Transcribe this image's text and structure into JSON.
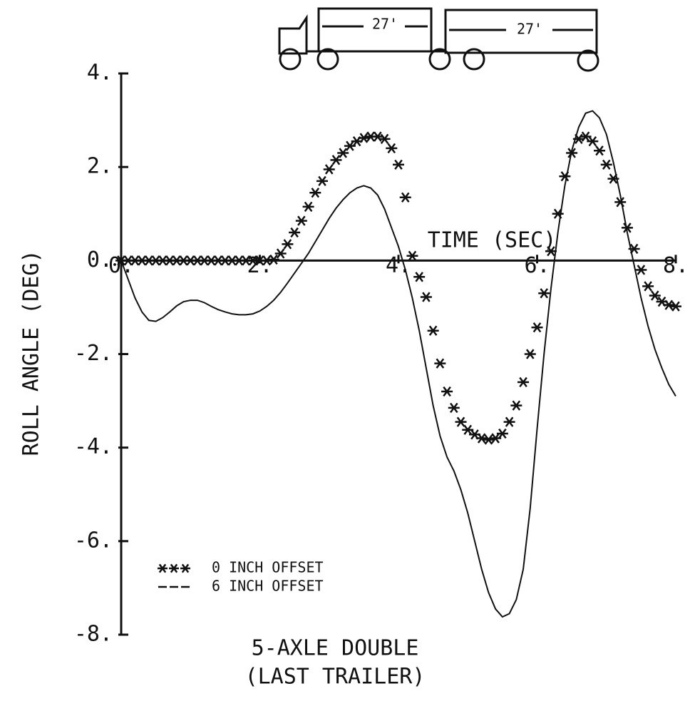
{
  "chart_data": {
    "type": "line",
    "ylabel": "ROLL ANGLE (DEG)",
    "xlabel": "TIME (SEC)",
    "caption": [
      "5-AXLE DOUBLE",
      "(LAST TRAILER)"
    ],
    "xlim": [
      0,
      8
    ],
    "ylim": [
      -8,
      4
    ],
    "xticks": [
      {
        "value": 0,
        "label": "0."
      },
      {
        "value": 2,
        "label": "2."
      },
      {
        "value": 4,
        "label": "4."
      },
      {
        "value": 6,
        "label": "6."
      },
      {
        "value": 8,
        "label": "8."
      }
    ],
    "yticks": [
      {
        "value": -8,
        "label": "-8."
      },
      {
        "value": -6,
        "label": "-6."
      },
      {
        "value": -4,
        "label": "-4."
      },
      {
        "value": -2,
        "label": "-2."
      },
      {
        "value": 0,
        "label": "0."
      },
      {
        "value": 2,
        "label": "2."
      },
      {
        "value": 4,
        "label": "4."
      }
    ],
    "grid": false,
    "legend": "lower left",
    "x": [
      0,
      0.1,
      0.2,
      0.3,
      0.4,
      0.5,
      0.6,
      0.7,
      0.8,
      0.9,
      1,
      1.1,
      1.2,
      1.3,
      1.4,
      1.5,
      1.6,
      1.7,
      1.8,
      1.9,
      2,
      2.1,
      2.2,
      2.3,
      2.4,
      2.5,
      2.6,
      2.7,
      2.8,
      2.9,
      3,
      3.1,
      3.2,
      3.3,
      3.4,
      3.5,
      3.6,
      3.7,
      3.8,
      3.9,
      4,
      4.1,
      4.2,
      4.3,
      4.4,
      4.5,
      4.6,
      4.7,
      4.8,
      4.9,
      5,
      5.1,
      5.2,
      5.3,
      5.4,
      5.5,
      5.6,
      5.7,
      5.8,
      5.9,
      6,
      6.1,
      6.2,
      6.3,
      6.4,
      6.5,
      6.6,
      6.7,
      6.8,
      6.9,
      7,
      7.1,
      7.2,
      7.3,
      7.4,
      7.5,
      7.6,
      7.7,
      7.8,
      7.9,
      8
    ],
    "series": [
      {
        "name": "0 INCH OFFSET",
        "color": "#111111",
        "marker": "asterisk",
        "values": [
          0,
          0,
          0,
          0,
          0,
          0,
          0,
          0,
          0,
          0,
          0,
          0,
          0,
          0,
          0,
          0,
          0,
          0,
          0,
          0,
          0,
          0,
          0.02,
          0.15,
          0.35,
          0.6,
          0.85,
          1.15,
          1.45,
          1.7,
          1.95,
          2.15,
          2.3,
          2.45,
          2.55,
          2.62,
          2.65,
          2.65,
          2.6,
          2.4,
          2.05,
          1.35,
          0.1,
          -0.35,
          -0.78,
          -1.5,
          -2.2,
          -2.8,
          -3.15,
          -3.45,
          -3.62,
          -3.72,
          -3.8,
          -3.83,
          -3.8,
          -3.7,
          -3.45,
          -3.1,
          -2.6,
          -2.0,
          -1.43,
          -0.7,
          0.2,
          1.0,
          1.8,
          2.3,
          2.6,
          2.65,
          2.55,
          2.35,
          2.05,
          1.75,
          1.25,
          0.7,
          0.25,
          -0.2,
          -0.55,
          -0.75,
          -0.88,
          -0.95,
          -0.98
        ]
      },
      {
        "name": "6 INCH OFFSET",
        "color": "#111111",
        "marker": "none",
        "values": [
          0,
          -0.4,
          -0.8,
          -1.1,
          -1.28,
          -1.3,
          -1.22,
          -1.1,
          -0.97,
          -0.88,
          -0.85,
          -0.85,
          -0.9,
          -0.98,
          -1.05,
          -1.1,
          -1.14,
          -1.16,
          -1.16,
          -1.14,
          -1.08,
          -0.98,
          -0.85,
          -0.68,
          -0.48,
          -0.27,
          -0.06,
          0.15,
          0.4,
          0.65,
          0.9,
          1.12,
          1.3,
          1.45,
          1.55,
          1.6,
          1.55,
          1.4,
          1.1,
          0.7,
          0.3,
          -0.2,
          -0.8,
          -1.5,
          -2.3,
          -3.1,
          -3.75,
          -4.2,
          -4.5,
          -4.9,
          -5.4,
          -6.0,
          -6.6,
          -7.1,
          -7.45,
          -7.62,
          -7.55,
          -7.25,
          -6.6,
          -5.3,
          -3.6,
          -2.0,
          -0.6,
          0.6,
          1.6,
          2.35,
          2.85,
          3.15,
          3.2,
          3.05,
          2.7,
          2.1,
          1.4,
          0.6,
          -0.1,
          -0.8,
          -1.4,
          -1.9,
          -2.3,
          -2.65,
          -2.9
        ]
      }
    ]
  },
  "diagram": {
    "trailer_lengths": [
      "27'",
      "27'"
    ]
  }
}
